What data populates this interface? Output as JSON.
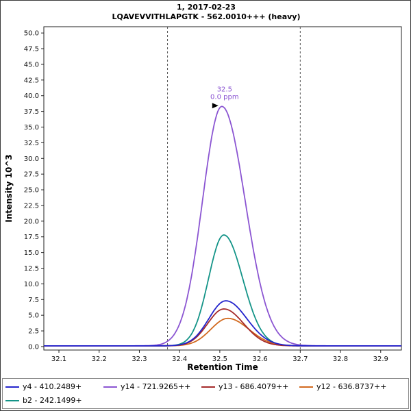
{
  "chart_data": {
    "type": "line",
    "title": "1, 2017-02-23",
    "subtitle": "LQAVEVVITHLAPGTK - 562.0010+++ (heavy)",
    "xlabel": "Retention Time",
    "ylabel": "Intensity 10^3",
    "x_range": [
      32.0625,
      32.9515
    ],
    "y_range": [
      -0.55,
      51.0
    ],
    "x_ticks": [
      "32.1",
      "32.2",
      "32.3",
      "32.4",
      "32.5",
      "32.6",
      "32.7",
      "32.8",
      "32.9"
    ],
    "y_ticks": [
      "0.0",
      "2.5",
      "5.0",
      "7.5",
      "10.0",
      "12.5",
      "15.0",
      "17.5",
      "20.0",
      "22.5",
      "25.0",
      "27.5",
      "30.0",
      "32.5",
      "35.0",
      "37.5",
      "40.0",
      "42.5",
      "45.0",
      "47.5",
      "50.0"
    ],
    "grid": false,
    "legend_position": "bottom",
    "legend_rows": [
      4,
      1
    ],
    "integration_boundaries": [
      32.37,
      32.7
    ],
    "annotation": {
      "rt_label": "32.5",
      "ppm_label": "0.0 ppm",
      "color": "#8b55d2"
    },
    "series": [
      {
        "id": "y4",
        "name": "y4 - 410.2489+",
        "color": "#2323cc",
        "apex_rt": 32.515,
        "apex_height": 7.3,
        "sigma_left": 0.042,
        "sigma_right": 0.052,
        "baseline": 0.12
      },
      {
        "id": "y14",
        "name": "y14 - 721.9265++",
        "color": "#8b55d2",
        "apex_rt": 32.505,
        "apex_height": 38.3,
        "sigma_left": 0.048,
        "sigma_right": 0.058,
        "baseline": 0.12
      },
      {
        "id": "y13",
        "name": "y13 - 686.4079++",
        "color": "#a52a2a",
        "apex_rt": 32.51,
        "apex_height": 6.0,
        "sigma_left": 0.04,
        "sigma_right": 0.049,
        "baseline": 0.12
      },
      {
        "id": "y12",
        "name": "y12 - 636.8737++",
        "color": "#d2691e",
        "apex_rt": 32.52,
        "apex_height": 4.5,
        "sigma_left": 0.042,
        "sigma_right": 0.052,
        "baseline": 0.12
      },
      {
        "id": "b2",
        "name": "b2 - 242.1499+",
        "color": "#149488",
        "apex_rt": 32.51,
        "apex_height": 17.8,
        "sigma_left": 0.038,
        "sigma_right": 0.047,
        "baseline": 0.12
      }
    ]
  }
}
